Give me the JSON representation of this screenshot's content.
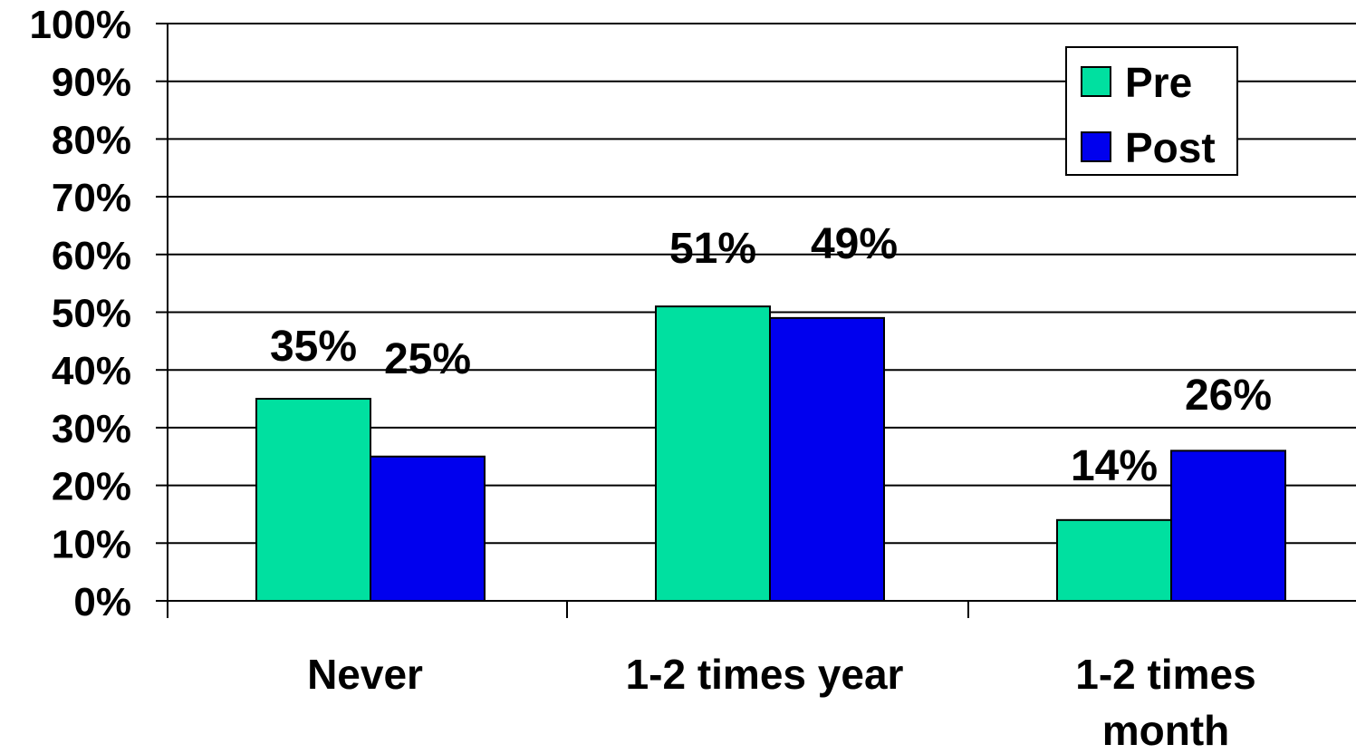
{
  "chart_data": {
    "type": "bar",
    "title": "",
    "xlabel": "",
    "ylabel": "",
    "categories": [
      [
        "Never"
      ],
      [
        "1-2 times year"
      ],
      [
        "1-2 times",
        "month"
      ]
    ],
    "series": [
      {
        "name": "Pre",
        "values": [
          35,
          51,
          14
        ],
        "labels": [
          "35%",
          "51%",
          "14%"
        ],
        "color": "#00E0A0"
      },
      {
        "name": "Post",
        "values": [
          25,
          49,
          26
        ],
        "labels": [
          "25%",
          "49%",
          "26%"
        ],
        "color": "#0000EE"
      }
    ],
    "ylim": [
      0,
      100
    ],
    "yticks": [
      {
        "value": 0,
        "label": "0%"
      },
      {
        "value": 10,
        "label": "10%"
      },
      {
        "value": 20,
        "label": "20%"
      },
      {
        "value": 30,
        "label": "30%"
      },
      {
        "value": 40,
        "label": "40%"
      },
      {
        "value": 50,
        "label": "50%"
      },
      {
        "value": 60,
        "label": "60%"
      },
      {
        "value": 70,
        "label": "70%"
      },
      {
        "value": 80,
        "label": "80%"
      },
      {
        "value": 90,
        "label": "90%"
      },
      {
        "value": 100,
        "label": "100%"
      }
    ],
    "grid": true,
    "legend": "top-right"
  }
}
